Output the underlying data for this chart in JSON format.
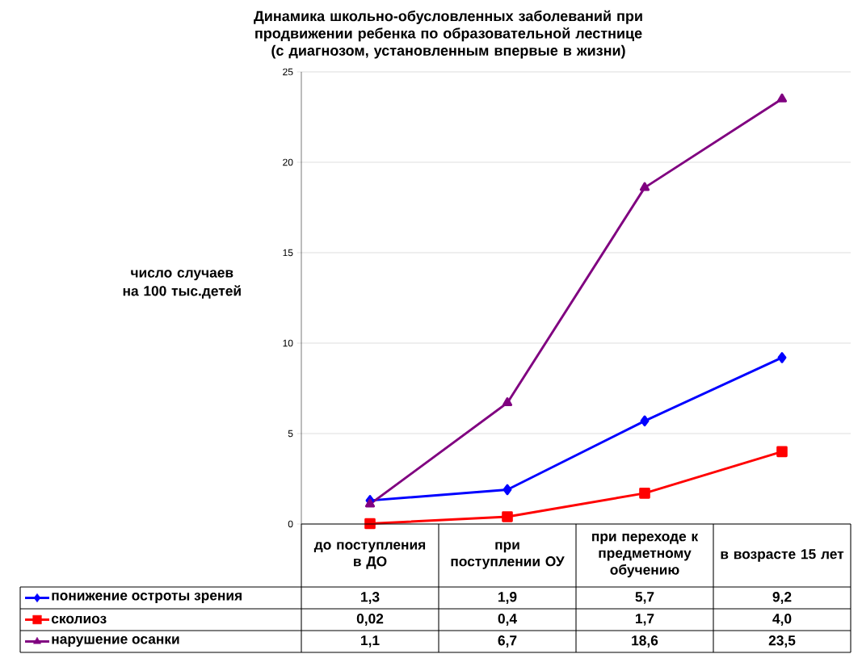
{
  "chart_data": {
    "type": "line",
    "title": "Динамика школьно-обусловленных заболеваний при продвижении ребенка по образовательной лестнице",
    "subtitle": "(с диагнозом, установленным впервые в жизни)",
    "ylabel": "число случаев на 100 тыс.детей",
    "categories": [
      "до поступления в ДО",
      "при поступлении ОУ",
      "при переходе к предметному обучению",
      "в возрасте 15 лет"
    ],
    "series": [
      {
        "name": "понижение остроты зрения",
        "color": "#0000ff",
        "marker": "diamond",
        "values": [
          1.3,
          1.9,
          5.7,
          9.2
        ],
        "value_labels": [
          "1,3",
          "1,9",
          "5,7",
          "9,2"
        ]
      },
      {
        "name": "сколиоз",
        "color": "#ff0000",
        "marker": "square",
        "values": [
          0.02,
          0.4,
          1.7,
          4.0
        ],
        "value_labels": [
          "0,02",
          "0,4",
          "1,7",
          "4,0"
        ]
      },
      {
        "name": "нарушение осанки",
        "color": "#800080",
        "marker": "triangle",
        "values": [
          1.1,
          6.7,
          18.6,
          23.5
        ],
        "value_labels": [
          "1,1",
          "6,7",
          "18,6",
          "23,5"
        ]
      }
    ],
    "ylim": [
      0,
      25
    ],
    "yticks": [
      0,
      5,
      10,
      15,
      20,
      25
    ],
    "grid": "y",
    "legend": "bottom",
    "line_style": "solid"
  }
}
